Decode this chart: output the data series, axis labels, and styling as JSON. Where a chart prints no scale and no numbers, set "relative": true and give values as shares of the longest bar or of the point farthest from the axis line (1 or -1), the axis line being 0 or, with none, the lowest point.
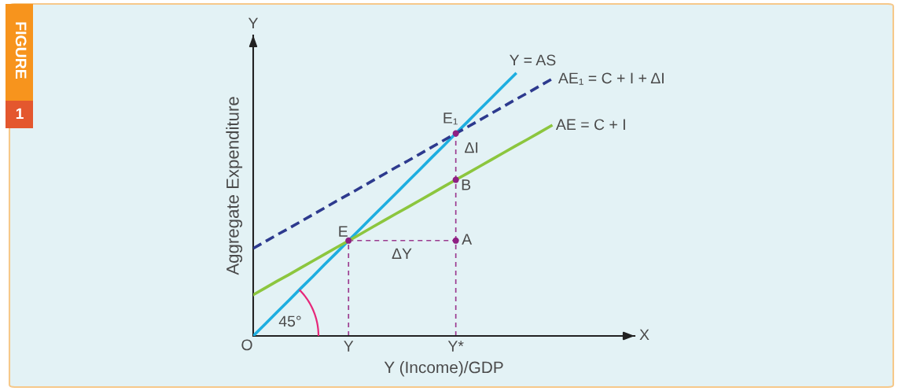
{
  "chart_data": {
    "type": "line",
    "xlabel": "Y (Income)/GDP",
    "ylabel": "Aggregate Expenditure",
    "relative": true,
    "tick_labels": "x",
    "legend": false,
    "categories": [
      null,
      null,
      null,
      null,
      null,
      null,
      null,
      null,
      "Y",
      null,
      null,
      null,
      null,
      null,
      null,
      null,
      null,
      "Y*",
      null,
      null,
      null,
      null,
      null,
      null,
      null,
      null,
      null,
      null,
      null,
      null,
      null,
      null,
      null
    ],
    "series": [
      {
        "name": "Y = AS",
        "color": "#1eaee0",
        "values": [
          0,
          0.045,
          0.091,
          0.136,
          0.182,
          0.227,
          0.273,
          0.318,
          0.364,
          0.409,
          0.455,
          0.5,
          0.545,
          0.591,
          0.636,
          0.682,
          0.727,
          0.773,
          0.818,
          0.864,
          0.909,
          0.955,
          1.0,
          null,
          null,
          null,
          null,
          null,
          null,
          null,
          null,
          null,
          null
        ]
      },
      {
        "name": "AE₁ = C + I + ΔI",
        "color": "#2d3a8e",
        "line_style": "dashed",
        "values": [
          0.334,
          0.36,
          0.386,
          0.411,
          0.437,
          0.463,
          0.489,
          0.515,
          0.54,
          0.566,
          0.592,
          0.618,
          0.644,
          0.669,
          0.695,
          0.721,
          0.747,
          0.773,
          0.798,
          0.824,
          0.85,
          0.876,
          0.902,
          0.927,
          0.953,
          0.979,
          null,
          null,
          null,
          null,
          null,
          null,
          null
        ]
      },
      {
        "name": "AE = C + I",
        "color": "#8cc63e",
        "values": [
          0.157,
          0.183,
          0.209,
          0.234,
          0.26,
          0.286,
          0.312,
          0.338,
          0.363,
          0.389,
          0.415,
          0.441,
          0.467,
          0.492,
          0.518,
          0.544,
          0.57,
          0.596,
          0.621,
          0.647,
          0.673,
          0.699,
          0.725,
          0.75,
          0.776,
          0.802,
          null,
          null,
          null,
          null,
          null,
          null,
          null
        ]
      },
      {
        "color": "#9b3a8f",
        "line_style": "dashed",
        "x": [
          "Y",
          "Y"
        ],
        "values": [
          0,
          0.364
        ]
      },
      {
        "color": "#9b3a8f",
        "line_style": "dashed",
        "x": [
          "Y",
          "Y*"
        ],
        "values": [
          0.364,
          0.364
        ]
      },
      {
        "color": "#9b3a8f",
        "line_style": "dashed",
        "x": [
          "Y*",
          "Y*"
        ],
        "values": [
          0,
          0.773
        ]
      },
      {
        "type": "scatter",
        "color": "#8e1f82",
        "marker": "circle",
        "x": [
          "Y",
          "Y*",
          "Y*",
          "Y*"
        ],
        "values": [
          0.364,
          0.773,
          0.596,
          0.364
        ]
      }
    ],
    "annotations": [
      {
        "text": "E",
        "x": "Y",
        "y": 0.364
      },
      {
        "text": "E₁",
        "x": "Y*",
        "y": 0.773
      },
      {
        "text": "ΔI",
        "x": "Y*",
        "y": 0.69
      },
      {
        "text": "B",
        "x": "Y*",
        "y": 0.596
      },
      {
        "text": "A",
        "x": "Y*",
        "y": 0.364
      },
      "ΔY",
      "O",
      "45°",
      "Y",
      "X",
      "FIGURE",
      "1"
    ]
  }
}
